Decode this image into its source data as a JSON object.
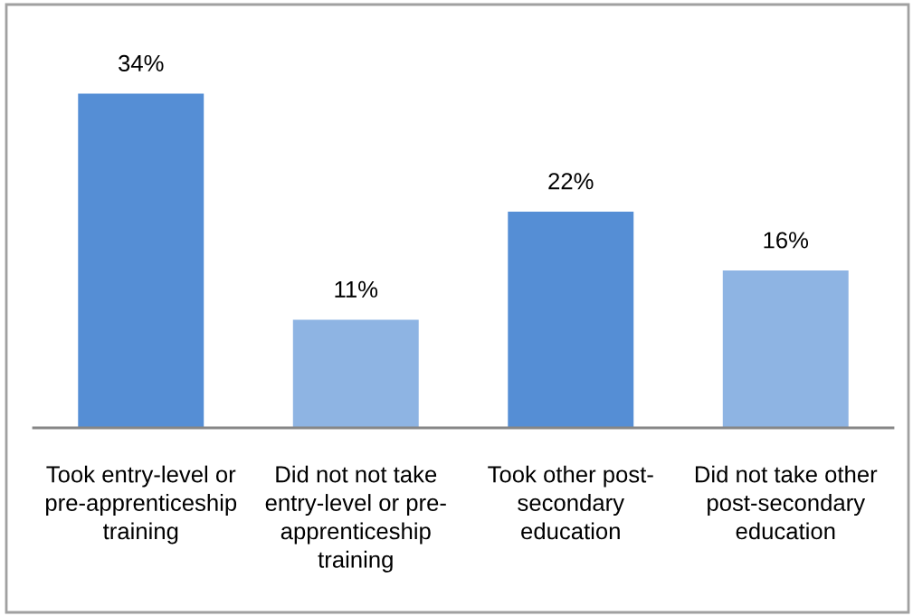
{
  "chart_data": {
    "type": "bar",
    "categories": [
      "Took entry-level or\npre-apprenticeship\ntraining",
      "Did not not take\nentry-level or pre-\napprenticeship\ntraining",
      "Took other post-\nsecondary\neducation",
      "Did not take other\npost-secondary\neducation"
    ],
    "values": [
      34,
      11,
      22,
      16
    ],
    "colors": [
      "#558ed5",
      "#8eb4e3",
      "#558ed5",
      "#8eb4e3"
    ],
    "value_labels": [
      "34%",
      "11%",
      "22%",
      "16%"
    ],
    "grid": false,
    "legend": false,
    "tick_labels": "x"
  }
}
